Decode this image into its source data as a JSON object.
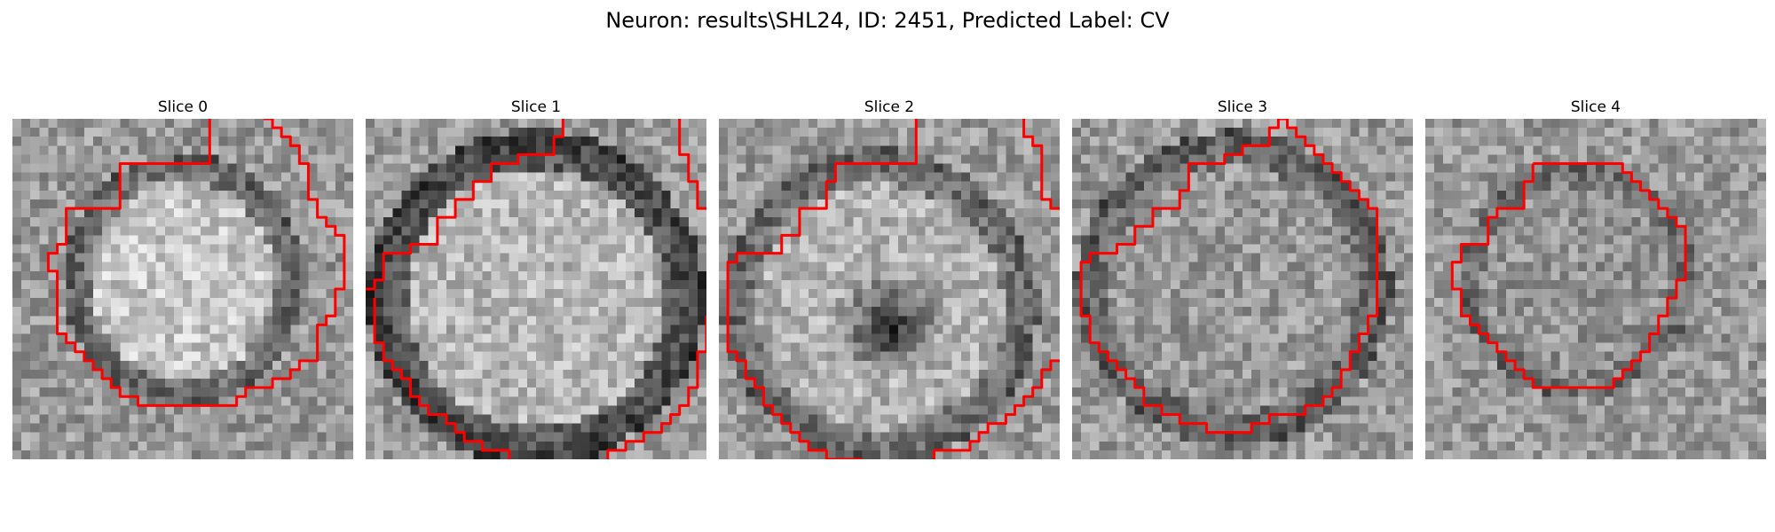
{
  "title": "Neuron: results\\SHL24, ID: 2451, Predicted Label: CV",
  "contour_color": "#ff0000",
  "slices": [
    {
      "label": "Slice 0",
      "image_data": "NIRS-0",
      "contour": [
        [
          22,
          0
        ],
        [
          22,
          5
        ],
        [
          12,
          5
        ],
        [
          12,
          10
        ],
        [
          6,
          10
        ],
        [
          6,
          14
        ],
        [
          5,
          14
        ],
        [
          5,
          15
        ],
        [
          4,
          15
        ],
        [
          4,
          17
        ],
        [
          5,
          17
        ],
        [
          5,
          24
        ],
        [
          6,
          24
        ],
        [
          6,
          25
        ],
        [
          7,
          25
        ],
        [
          7,
          26
        ],
        [
          8,
          26
        ],
        [
          8,
          27
        ],
        [
          9,
          27
        ],
        [
          9,
          28
        ],
        [
          10,
          28
        ],
        [
          10,
          29
        ],
        [
          11,
          29
        ],
        [
          11,
          30
        ],
        [
          12,
          30
        ],
        [
          12,
          31
        ],
        [
          13,
          31
        ],
        [
          13,
          31
        ],
        [
          14,
          31
        ],
        [
          14,
          32
        ],
        [
          18,
          32
        ],
        [
          18,
          32
        ],
        [
          21,
          32
        ],
        [
          21,
          32
        ],
        [
          25,
          32
        ],
        [
          25,
          31
        ],
        [
          26,
          31
        ],
        [
          26,
          30
        ],
        [
          29,
          30
        ],
        [
          29,
          29
        ],
        [
          31,
          29
        ],
        [
          31,
          28
        ],
        [
          32,
          28
        ],
        [
          32,
          27
        ],
        [
          34,
          27
        ],
        [
          34,
          23
        ],
        [
          35,
          23
        ],
        [
          35,
          22
        ],
        [
          36,
          22
        ],
        [
          36,
          19
        ],
        [
          37,
          19
        ],
        [
          37,
          13
        ],
        [
          36,
          13
        ],
        [
          36,
          12
        ],
        [
          35,
          12
        ],
        [
          35,
          11
        ],
        [
          34,
          11
        ],
        [
          34,
          9
        ],
        [
          33,
          9
        ],
        [
          33,
          5
        ],
        [
          32,
          5
        ],
        [
          32,
          3
        ],
        [
          31,
          3
        ],
        [
          31,
          2
        ],
        [
          30,
          2
        ],
        [
          30,
          1
        ],
        [
          29,
          1
        ],
        [
          29,
          0
        ],
        [
          28,
          0
        ]
      ],
      "contour2": []
    },
    {
      "label": "Slice 1",
      "image_data": "NIRS-1",
      "contour": [
        [
          22,
          0
        ],
        [
          22,
          2
        ],
        [
          21,
          2
        ],
        [
          21,
          4
        ],
        [
          17,
          4
        ],
        [
          17,
          5
        ],
        [
          14,
          5
        ],
        [
          14,
          7
        ],
        [
          12,
          7
        ],
        [
          12,
          9
        ],
        [
          10,
          9
        ],
        [
          10,
          11
        ],
        [
          8,
          11
        ],
        [
          8,
          14
        ],
        [
          5,
          14
        ],
        [
          5,
          15
        ],
        [
          2,
          15
        ],
        [
          2,
          18
        ],
        [
          1,
          18
        ],
        [
          1,
          19
        ],
        [
          0,
          19
        ]
      ],
      "contour2": [
        [
          1,
          20
        ],
        [
          1,
          25
        ],
        [
          2,
          25
        ],
        [
          2,
          27
        ],
        [
          3,
          27
        ],
        [
          3,
          28
        ],
        [
          4,
          28
        ],
        [
          4,
          29
        ],
        [
          5,
          29
        ],
        [
          5,
          31
        ],
        [
          6,
          31
        ],
        [
          6,
          32
        ],
        [
          7,
          32
        ],
        [
          7,
          33
        ],
        [
          9,
          33
        ],
        [
          9,
          34
        ],
        [
          10,
          34
        ],
        [
          10,
          35
        ],
        [
          11,
          35
        ],
        [
          11,
          36
        ],
        [
          13,
          36
        ],
        [
          13,
          37
        ],
        [
          16,
          37
        ],
        [
          16,
          38
        ]
      ],
      "contour3": [
        [
          27,
          38
        ],
        [
          27,
          37
        ],
        [
          29,
          37
        ],
        [
          29,
          36
        ],
        [
          31,
          36
        ],
        [
          31,
          35
        ],
        [
          33,
          35
        ],
        [
          33,
          34
        ],
        [
          34,
          34
        ],
        [
          34,
          33
        ],
        [
          35,
          33
        ],
        [
          35,
          32
        ],
        [
          36,
          32
        ],
        [
          36,
          30
        ],
        [
          37,
          30
        ],
        [
          37,
          26
        ],
        [
          38,
          26
        ],
        [
          38,
          22
        ]
      ],
      "contour4": [
        [
          35,
          0
        ],
        [
          35,
          4
        ],
        [
          36,
          4
        ],
        [
          36,
          7
        ],
        [
          37,
          7
        ],
        [
          37,
          10
        ],
        [
          38,
          10
        ]
      ]
    },
    {
      "label": "Slice 2",
      "image_data": "NIRS-2",
      "contour": [
        [
          22,
          0
        ],
        [
          22,
          5
        ],
        [
          13,
          5
        ],
        [
          13,
          7
        ],
        [
          12,
          7
        ],
        [
          12,
          10
        ],
        [
          9,
          10
        ],
        [
          9,
          13
        ],
        [
          7,
          13
        ],
        [
          7,
          15
        ],
        [
          2,
          15
        ],
        [
          2,
          16
        ],
        [
          1,
          16
        ],
        [
          1,
          26
        ],
        [
          2,
          26
        ],
        [
          2,
          27
        ],
        [
          3,
          27
        ],
        [
          3,
          29
        ],
        [
          4,
          29
        ],
        [
          4,
          30
        ],
        [
          5,
          30
        ],
        [
          5,
          32
        ],
        [
          6,
          32
        ],
        [
          6,
          33
        ],
        [
          7,
          33
        ],
        [
          7,
          34
        ],
        [
          8,
          34
        ],
        [
          8,
          35
        ],
        [
          9,
          35
        ],
        [
          9,
          36
        ],
        [
          10,
          36
        ],
        [
          10,
          37
        ],
        [
          12,
          37
        ],
        [
          12,
          38
        ],
        [
          16,
          38
        ],
        [
          16,
          38
        ]
      ],
      "contour2": [
        [
          24,
          38
        ],
        [
          24,
          37
        ],
        [
          28,
          37
        ],
        [
          28,
          36
        ],
        [
          29,
          36
        ],
        [
          29,
          35
        ],
        [
          30,
          35
        ],
        [
          30,
          34
        ],
        [
          32,
          34
        ],
        [
          32,
          33
        ],
        [
          33,
          33
        ],
        [
          33,
          32
        ],
        [
          34,
          32
        ],
        [
          34,
          31
        ],
        [
          35,
          31
        ],
        [
          35,
          30
        ],
        [
          36,
          30
        ],
        [
          36,
          28
        ],
        [
          37,
          28
        ],
        [
          37,
          27
        ],
        [
          38,
          27
        ]
      ],
      "contour3": [
        [
          34,
          0
        ],
        [
          34,
          2
        ],
        [
          35,
          2
        ],
        [
          35,
          3
        ],
        [
          36,
          3
        ],
        [
          36,
          9
        ],
        [
          37,
          9
        ],
        [
          37,
          10
        ],
        [
          38,
          10
        ]
      ]
    },
    {
      "label": "Slice 3",
      "image_data": "NIRS-3",
      "contour": [
        [
          23,
          0
        ],
        [
          23,
          1
        ],
        [
          22,
          1
        ],
        [
          22,
          3
        ],
        [
          19,
          3
        ],
        [
          19,
          4
        ],
        [
          17,
          4
        ],
        [
          17,
          5
        ],
        [
          13,
          5
        ],
        [
          13,
          8
        ],
        [
          12,
          8
        ],
        [
          12,
          10
        ],
        [
          9,
          10
        ],
        [
          9,
          12
        ],
        [
          7,
          12
        ],
        [
          7,
          14
        ],
        [
          5,
          14
        ],
        [
          5,
          15
        ],
        [
          2,
          15
        ],
        [
          2,
          16
        ],
        [
          1,
          16
        ],
        [
          1,
          22
        ],
        [
          2,
          22
        ],
        [
          2,
          25
        ],
        [
          3,
          25
        ],
        [
          3,
          26
        ],
        [
          4,
          26
        ],
        [
          4,
          27
        ],
        [
          5,
          27
        ],
        [
          5,
          28
        ],
        [
          6,
          28
        ],
        [
          6,
          29
        ],
        [
          7,
          29
        ],
        [
          7,
          30
        ],
        [
          8,
          30
        ],
        [
          8,
          32
        ],
        [
          10,
          32
        ],
        [
          10,
          33
        ],
        [
          12,
          33
        ],
        [
          12,
          34
        ],
        [
          15,
          34
        ],
        [
          15,
          35
        ],
        [
          20,
          35
        ],
        [
          20,
          34
        ],
        [
          22,
          34
        ],
        [
          22,
          33
        ],
        [
          26,
          33
        ],
        [
          26,
          32
        ],
        [
          28,
          32
        ],
        [
          28,
          31
        ],
        [
          29,
          31
        ],
        [
          29,
          30
        ],
        [
          30,
          30
        ],
        [
          30,
          29
        ],
        [
          30,
          28
        ],
        [
          31,
          28
        ],
        [
          31,
          26
        ],
        [
          32,
          26
        ],
        [
          32,
          24
        ],
        [
          33,
          24
        ],
        [
          33,
          22
        ],
        [
          34,
          22
        ],
        [
          34,
          10
        ],
        [
          33,
          10
        ],
        [
          33,
          9
        ],
        [
          32,
          9
        ],
        [
          32,
          8
        ],
        [
          31,
          8
        ],
        [
          31,
          7
        ],
        [
          30,
          7
        ],
        [
          30,
          6
        ],
        [
          29,
          6
        ],
        [
          29,
          5
        ],
        [
          28,
          5
        ],
        [
          28,
          4
        ],
        [
          27,
          4
        ],
        [
          27,
          3
        ],
        [
          26,
          3
        ],
        [
          26,
          2
        ],
        [
          25,
          2
        ],
        [
          25,
          1
        ],
        [
          24,
          1
        ],
        [
          24,
          0
        ],
        [
          23,
          0
        ]
      ],
      "contour2": []
    },
    {
      "label": "Slice 4",
      "image_data": "NIRS-4",
      "contour": [
        [
          12,
          5
        ],
        [
          12,
          7
        ],
        [
          11,
          7
        ],
        [
          11,
          10
        ],
        [
          8,
          10
        ],
        [
          8,
          11
        ],
        [
          7,
          11
        ],
        [
          7,
          14
        ],
        [
          4,
          14
        ],
        [
          4,
          16
        ],
        [
          3,
          16
        ],
        [
          3,
          19
        ],
        [
          4,
          19
        ],
        [
          4,
          22
        ],
        [
          5,
          22
        ],
        [
          5,
          23
        ],
        [
          6,
          23
        ],
        [
          6,
          24
        ],
        [
          7,
          24
        ],
        [
          7,
          25
        ],
        [
          8,
          25
        ],
        [
          8,
          26
        ],
        [
          9,
          26
        ],
        [
          9,
          27
        ],
        [
          10,
          27
        ],
        [
          10,
          28
        ],
        [
          11,
          28
        ],
        [
          11,
          29
        ],
        [
          12,
          29
        ],
        [
          12,
          30
        ],
        [
          16,
          30
        ],
        [
          16,
          30
        ],
        [
          21,
          30
        ],
        [
          21,
          29
        ],
        [
          22,
          29
        ],
        [
          22,
          28
        ],
        [
          23,
          28
        ],
        [
          23,
          27
        ],
        [
          24,
          27
        ],
        [
          24,
          26
        ],
        [
          25,
          26
        ],
        [
          25,
          24
        ],
        [
          26,
          24
        ],
        [
          26,
          22
        ],
        [
          27,
          22
        ],
        [
          27,
          20
        ],
        [
          28,
          20
        ],
        [
          28,
          18
        ],
        [
          29,
          18
        ],
        [
          29,
          12
        ],
        [
          28,
          12
        ],
        [
          28,
          11
        ],
        [
          27,
          11
        ],
        [
          27,
          10
        ],
        [
          26,
          10
        ],
        [
          26,
          9
        ],
        [
          25,
          9
        ],
        [
          25,
          8
        ],
        [
          24,
          8
        ],
        [
          24,
          7
        ],
        [
          23,
          7
        ],
        [
          23,
          6
        ],
        [
          22,
          6
        ],
        [
          22,
          5
        ],
        [
          12,
          5
        ]
      ],
      "contour2": []
    }
  ]
}
